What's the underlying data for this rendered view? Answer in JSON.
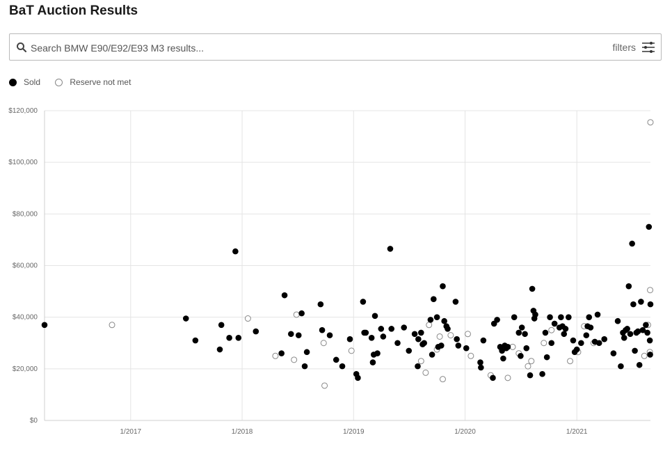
{
  "title": "BaT Auction Results",
  "search": {
    "placeholder": "Search BMW E90/E92/E93 M3 results..."
  },
  "filters_label": "filters",
  "icons": {
    "search": "search-icon",
    "filters": "sliders-icon"
  },
  "legend": [
    {
      "label": "Sold",
      "style": "filled"
    },
    {
      "label": "Reserve not met",
      "style": "hollow"
    }
  ],
  "chart_data": {
    "type": "scatter",
    "title": "",
    "xlabel": "",
    "ylabel": "",
    "xlim": [
      "2016-03-25",
      "2021-08-30"
    ],
    "ylim": [
      0,
      120000
    ],
    "grid": true,
    "legend_position": "top-left",
    "y_ticks": [
      0,
      20000,
      40000,
      60000,
      80000,
      100000,
      120000
    ],
    "y_tick_labels": [
      "$0",
      "$20,000",
      "$40,000",
      "$60,000",
      "$80,000",
      "$100,000",
      "$120,000"
    ],
    "x_ticks": [
      "2017-01-01",
      "2018-01-01",
      "2019-01-01",
      "2020-01-01",
      "2021-01-01"
    ],
    "x_tick_labels": [
      "1/2017",
      "1/2018",
      "1/2019",
      "1/2020",
      "1/2021"
    ],
    "colors": {
      "sold": "#000000",
      "reserve_not_met": "#888888"
    },
    "series": [
      {
        "name": "Sold",
        "points": [
          [
            "2016-03-25",
            37000
          ],
          [
            "2017-07-01",
            39500
          ],
          [
            "2017-08-01",
            31000
          ],
          [
            "2017-10-20",
            27500
          ],
          [
            "2017-10-25",
            37000
          ],
          [
            "2017-11-20",
            32000
          ],
          [
            "2017-12-10",
            65500
          ],
          [
            "2017-12-20",
            32000
          ],
          [
            "2018-02-15",
            34500
          ],
          [
            "2018-05-10",
            26000
          ],
          [
            "2018-05-20",
            48500
          ],
          [
            "2018-06-10",
            33500
          ],
          [
            "2018-07-05",
            33000
          ],
          [
            "2018-07-15",
            41500
          ],
          [
            "2018-07-25",
            21000
          ],
          [
            "2018-08-01",
            26500
          ],
          [
            "2018-09-15",
            45000
          ],
          [
            "2018-09-20",
            35000
          ],
          [
            "2018-10-15",
            33000
          ],
          [
            "2018-11-05",
            23500
          ],
          [
            "2018-11-25",
            21000
          ],
          [
            "2018-12-20",
            31500
          ],
          [
            "2019-01-10",
            18000
          ],
          [
            "2019-01-15",
            16500
          ],
          [
            "2019-02-01",
            46000
          ],
          [
            "2019-02-05",
            34000
          ],
          [
            "2019-02-10",
            34000
          ],
          [
            "2019-03-01",
            32000
          ],
          [
            "2019-03-05",
            22500
          ],
          [
            "2019-03-08",
            25500
          ],
          [
            "2019-03-12",
            40500
          ],
          [
            "2019-03-20",
            26000
          ],
          [
            "2019-04-01",
            35500
          ],
          [
            "2019-04-08",
            32500
          ],
          [
            "2019-05-01",
            66500
          ],
          [
            "2019-05-05",
            35500
          ],
          [
            "2019-05-25",
            30000
          ],
          [
            "2019-06-15",
            36000
          ],
          [
            "2019-07-01",
            27000
          ],
          [
            "2019-07-20",
            33500
          ],
          [
            "2019-07-30",
            21000
          ],
          [
            "2019-08-01",
            31500
          ],
          [
            "2019-08-10",
            34000
          ],
          [
            "2019-08-15",
            29500
          ],
          [
            "2019-08-20",
            30000
          ],
          [
            "2019-09-10",
            39000
          ],
          [
            "2019-09-15",
            25500
          ],
          [
            "2019-09-20",
            47000
          ],
          [
            "2019-10-01",
            40000
          ],
          [
            "2019-10-05",
            28500
          ],
          [
            "2019-10-15",
            29000
          ],
          [
            "2019-10-20",
            52000
          ],
          [
            "2019-10-25",
            38500
          ],
          [
            "2019-11-01",
            36500
          ],
          [
            "2019-11-05",
            35500
          ],
          [
            "2019-12-01",
            46000
          ],
          [
            "2019-12-05",
            31500
          ],
          [
            "2019-12-10",
            29000
          ],
          [
            "2020-01-05",
            28000
          ],
          [
            "2020-02-20",
            22500
          ],
          [
            "2020-02-22",
            20500
          ],
          [
            "2020-03-01",
            31000
          ],
          [
            "2020-04-01",
            16500
          ],
          [
            "2020-04-05",
            37500
          ],
          [
            "2020-04-15",
            39000
          ],
          [
            "2020-04-25",
            28500
          ],
          [
            "2020-05-01",
            27000
          ],
          [
            "2020-05-05",
            24000
          ],
          [
            "2020-05-10",
            29000
          ],
          [
            "2020-05-15",
            28000
          ],
          [
            "2020-05-20",
            28500
          ],
          [
            "2020-06-10",
            40000
          ],
          [
            "2020-06-25",
            34000
          ],
          [
            "2020-07-01",
            25000
          ],
          [
            "2020-07-05",
            36000
          ],
          [
            "2020-07-15",
            33500
          ],
          [
            "2020-07-20",
            28000
          ],
          [
            "2020-08-01",
            17500
          ],
          [
            "2020-08-08",
            51000
          ],
          [
            "2020-08-12",
            42500
          ],
          [
            "2020-08-15",
            39500
          ],
          [
            "2020-08-18",
            41000
          ],
          [
            "2020-09-10",
            18000
          ],
          [
            "2020-09-20",
            34000
          ],
          [
            "2020-09-25",
            24500
          ],
          [
            "2020-10-05",
            40000
          ],
          [
            "2020-10-10",
            30000
          ],
          [
            "2020-10-20",
            37500
          ],
          [
            "2020-11-05",
            36000
          ],
          [
            "2020-11-10",
            40000
          ],
          [
            "2020-11-15",
            36500
          ],
          [
            "2020-11-20",
            33500
          ],
          [
            "2020-11-25",
            35500
          ],
          [
            "2020-12-05",
            40000
          ],
          [
            "2020-12-20",
            31000
          ],
          [
            "2020-12-25",
            26500
          ],
          [
            "2021-01-01",
            27500
          ],
          [
            "2021-01-15",
            30000
          ],
          [
            "2021-02-01",
            33000
          ],
          [
            "2021-02-05",
            36500
          ],
          [
            "2021-02-10",
            40000
          ],
          [
            "2021-02-15",
            36000
          ],
          [
            "2021-03-01",
            30500
          ],
          [
            "2021-03-10",
            41000
          ],
          [
            "2021-03-15",
            30000
          ],
          [
            "2021-04-01",
            31500
          ],
          [
            "2021-05-01",
            26000
          ],
          [
            "2021-05-15",
            38500
          ],
          [
            "2021-05-25",
            21000
          ],
          [
            "2021-06-01",
            34000
          ],
          [
            "2021-06-05",
            32000
          ],
          [
            "2021-06-10",
            35000
          ],
          [
            "2021-06-15",
            35500
          ],
          [
            "2021-06-20",
            52000
          ],
          [
            "2021-06-25",
            33500
          ],
          [
            "2021-07-01",
            68500
          ],
          [
            "2021-07-05",
            45000
          ],
          [
            "2021-07-10",
            27000
          ],
          [
            "2021-07-15",
            34000
          ],
          [
            "2021-07-20",
            34500
          ],
          [
            "2021-07-25",
            21500
          ],
          [
            "2021-07-30",
            46000
          ],
          [
            "2021-08-05",
            35000
          ],
          [
            "2021-08-15",
            37000
          ],
          [
            "2021-08-20",
            34000
          ],
          [
            "2021-08-25",
            75000
          ],
          [
            "2021-08-28",
            31000
          ],
          [
            "2021-08-29",
            25500
          ],
          [
            "2021-08-30",
            45000
          ]
        ]
      },
      {
        "name": "Reserve not met",
        "points": [
          [
            "2016-11-01",
            37000
          ],
          [
            "2018-01-20",
            39500
          ],
          [
            "2018-04-20",
            25000
          ],
          [
            "2018-06-20",
            23500
          ],
          [
            "2018-06-28",
            41000
          ],
          [
            "2018-09-25",
            30000
          ],
          [
            "2018-09-28",
            13500
          ],
          [
            "2018-12-25",
            27000
          ],
          [
            "2019-08-10",
            23000
          ],
          [
            "2019-08-25",
            18500
          ],
          [
            "2019-09-05",
            37000
          ],
          [
            "2019-10-01",
            27500
          ],
          [
            "2019-10-10",
            32500
          ],
          [
            "2019-10-20",
            16000
          ],
          [
            "2019-11-15",
            33000
          ],
          [
            "2020-01-10",
            33500
          ],
          [
            "2020-01-20",
            25000
          ],
          [
            "2020-03-25",
            17500
          ],
          [
            "2020-05-20",
            16500
          ],
          [
            "2020-06-05",
            28500
          ],
          [
            "2020-06-25",
            26000
          ],
          [
            "2020-07-25",
            21000
          ],
          [
            "2020-08-05",
            23000
          ],
          [
            "2020-09-15",
            30000
          ],
          [
            "2020-10-10",
            35000
          ],
          [
            "2020-12-10",
            23000
          ],
          [
            "2021-01-05",
            26500
          ],
          [
            "2021-01-25",
            36500
          ],
          [
            "2021-02-25",
            30000
          ],
          [
            "2021-08-10",
            25000
          ],
          [
            "2021-08-22",
            37000
          ],
          [
            "2021-08-28",
            26500
          ],
          [
            "2021-08-29",
            50500
          ],
          [
            "2021-08-30",
            115500
          ]
        ]
      }
    ]
  }
}
